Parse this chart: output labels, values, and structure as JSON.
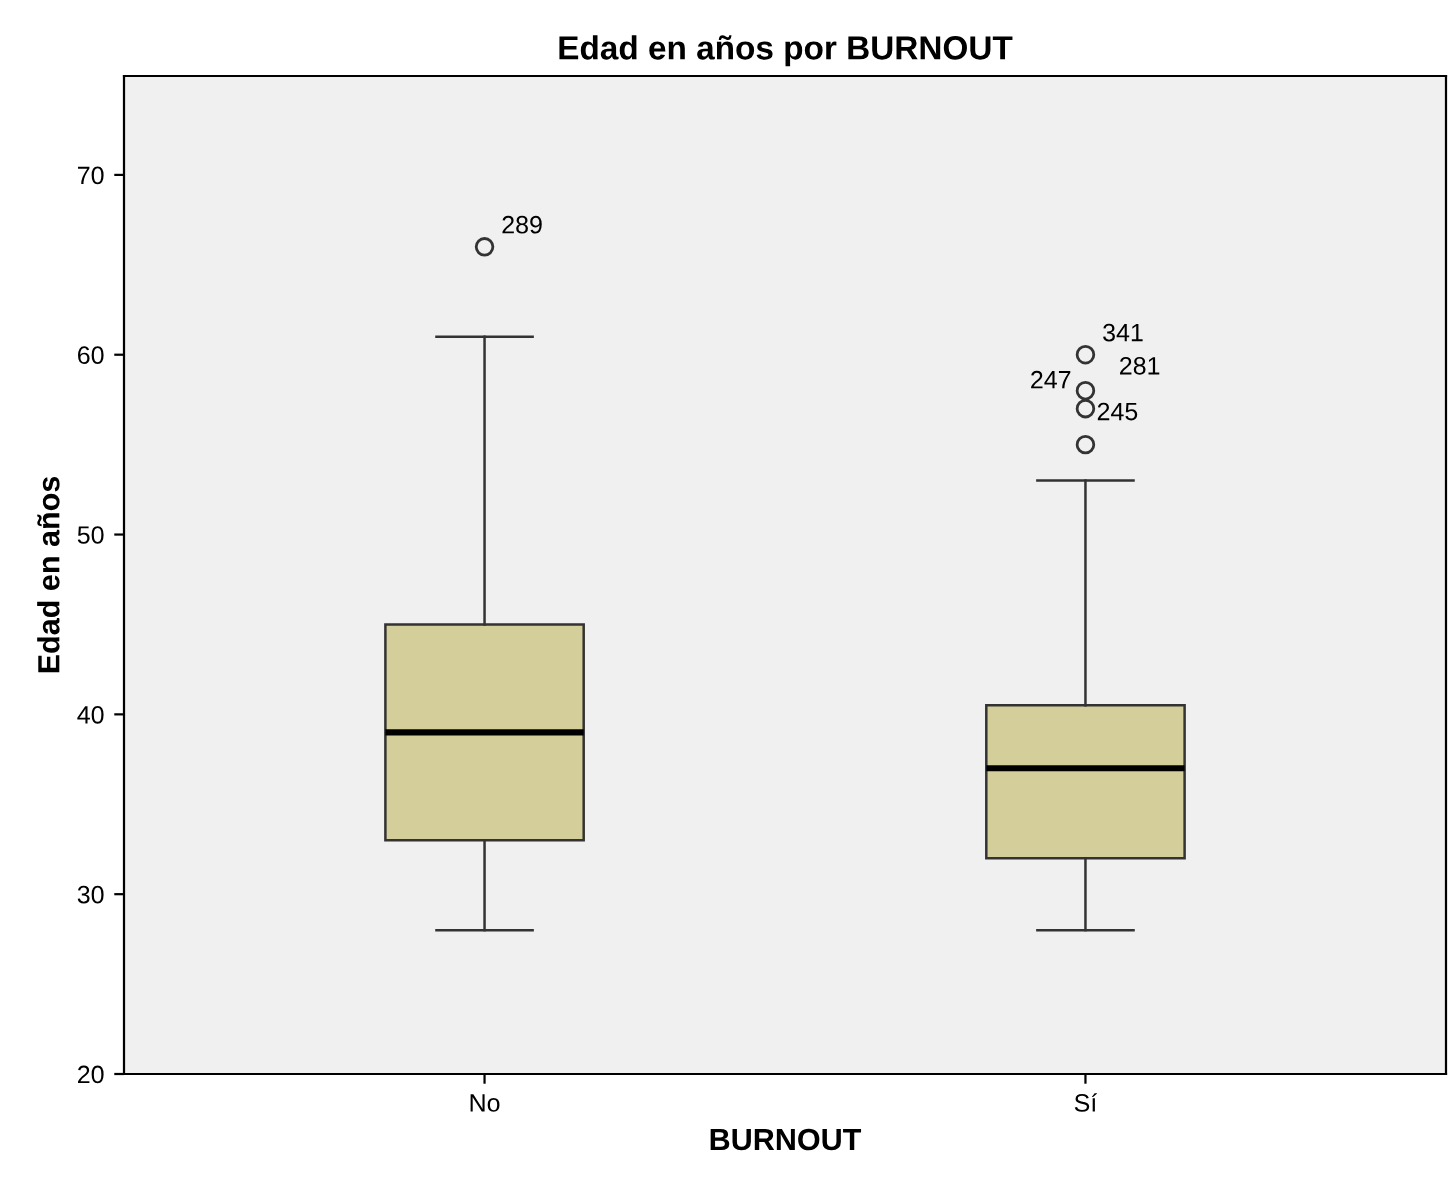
{
  "chart_data": {
    "type": "box",
    "title": "Edad en años por BURNOUT",
    "xlabel": "BURNOUT",
    "ylabel": "Edad en años",
    "categories": [
      "No",
      "Sí"
    ],
    "boxes": [
      {
        "low": 28,
        "q1": 33,
        "median": 39,
        "q3": 45,
        "high": 61,
        "outliers": [
          66
        ]
      },
      {
        "low": 28,
        "q1": 32,
        "median": 37,
        "q3": 40.5,
        "high": 53,
        "outliers": [
          60,
          58,
          57,
          55
        ]
      }
    ],
    "color": "#d3ce9a",
    "ylim": [
      20,
      75.5
    ],
    "yticks": [
      20,
      30,
      40,
      50,
      60,
      70
    ],
    "grid": false,
    "legend": false,
    "marker": "circle",
    "annotations": [
      "289",
      "341",
      "281",
      "247",
      "245"
    ]
  }
}
